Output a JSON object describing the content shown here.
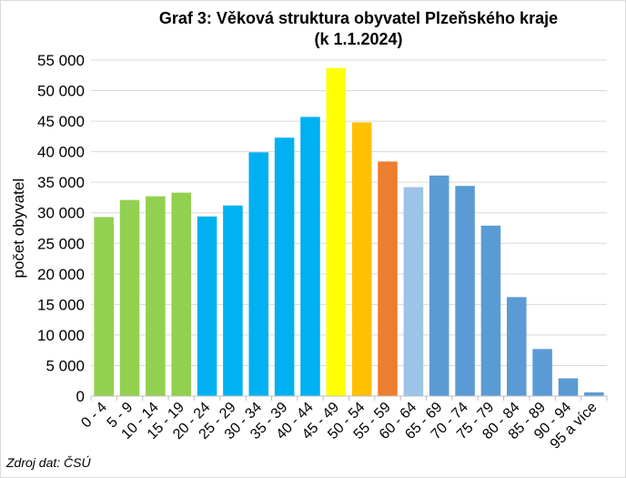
{
  "chart_data": {
    "type": "bar",
    "title_line1": "Graf 3: Věková struktura obyvatel Plzeňského kraje",
    "title_line2": "(k 1.1.2024)",
    "xlabel": "",
    "ylabel": "počet obyvatel",
    "ylim": [
      0,
      55000
    ],
    "ytick_values": [
      0,
      5000,
      10000,
      15000,
      20000,
      25000,
      30000,
      35000,
      40000,
      45000,
      50000,
      55000
    ],
    "ytick_labels": [
      "0",
      "5 000",
      "10 000",
      "15 000",
      "20 000",
      "25 000",
      "30 000",
      "35 000",
      "40 000",
      "45 000",
      "50 000",
      "55 000"
    ],
    "grid": true,
    "categories": [
      "0 - 4",
      "5 - 9",
      "10 - 14",
      "15 - 19",
      "20 - 24",
      "25 - 29",
      "30 - 34",
      "35 - 39",
      "40 - 44",
      "45 - 49",
      "50 - 54",
      "55 - 59",
      "60 - 64",
      "65 - 69",
      "70 - 74",
      "75 - 79",
      "80 - 84",
      "85 - 89",
      "90 - 94",
      "95 a více"
    ],
    "values": [
      29300,
      32100,
      32700,
      33300,
      29400,
      31200,
      39900,
      42300,
      45700,
      53700,
      44800,
      38400,
      34200,
      36100,
      34400,
      27900,
      16200,
      7700,
      2900,
      600
    ],
    "colors": [
      "#92d050",
      "#92d050",
      "#92d050",
      "#92d050",
      "#00b0f0",
      "#00b0f0",
      "#00b0f0",
      "#00b0f0",
      "#00b0f0",
      "#ffff00",
      "#ffc000",
      "#ed7d31",
      "#9dc3e6",
      "#5b9bd5",
      "#5b9bd5",
      "#5b9bd5",
      "#5b9bd5",
      "#5b9bd5",
      "#5b9bd5",
      "#5b9bd5"
    ]
  },
  "footer": {
    "source": "Zdroj dat: ČSÚ"
  }
}
